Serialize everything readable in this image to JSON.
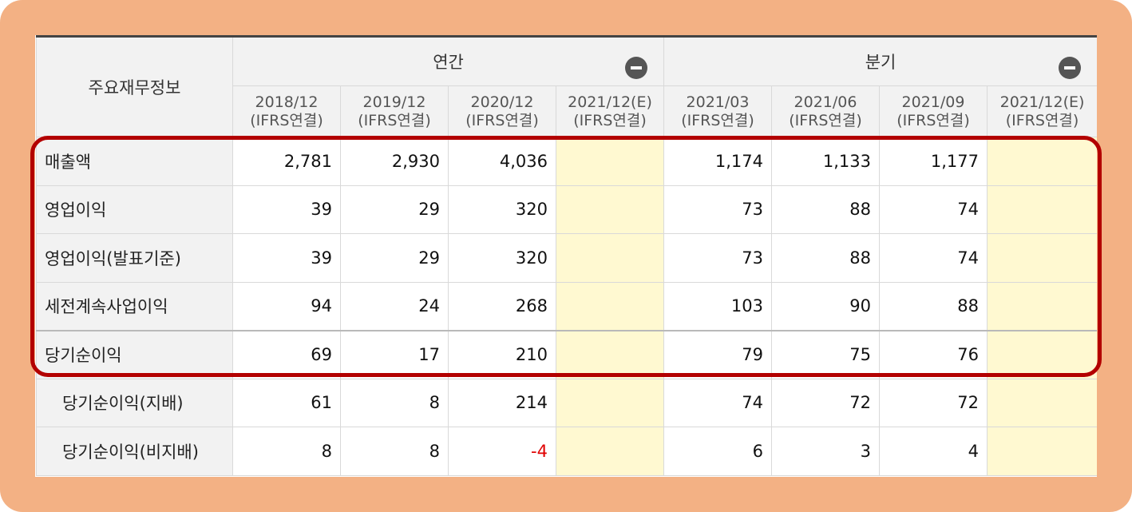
{
  "header": {
    "title": "주요재무정보",
    "annual_label": "연간",
    "quarterly_label": "분기",
    "periods": [
      {
        "date": "2018/12",
        "basis": "(IFRS연결)"
      },
      {
        "date": "2019/12",
        "basis": "(IFRS연결)"
      },
      {
        "date": "2020/12",
        "basis": "(IFRS연결)"
      },
      {
        "date": "2021/12(E)",
        "basis": "(IFRS연결)"
      },
      {
        "date": "2021/03",
        "basis": "(IFRS연결)"
      },
      {
        "date": "2021/06",
        "basis": "(IFRS연결)"
      },
      {
        "date": "2021/09",
        "basis": "(IFRS연결)"
      },
      {
        "date": "2021/12(E)",
        "basis": "(IFRS연결)"
      }
    ]
  },
  "rows": [
    {
      "label": "매출액",
      "values": [
        "2,781",
        "2,930",
        "4,036",
        "",
        "1,174",
        "1,133",
        "1,177",
        ""
      ]
    },
    {
      "label": "영업이익",
      "values": [
        "39",
        "29",
        "320",
        "",
        "73",
        "88",
        "74",
        ""
      ]
    },
    {
      "label": "영업이익(발표기준)",
      "values": [
        "39",
        "29",
        "320",
        "",
        "73",
        "88",
        "74",
        ""
      ]
    },
    {
      "label": "세전계속사업이익",
      "values": [
        "94",
        "24",
        "268",
        "",
        "103",
        "90",
        "88",
        ""
      ]
    },
    {
      "label": "당기순이익",
      "values": [
        "69",
        "17",
        "210",
        "",
        "79",
        "75",
        "76",
        ""
      ]
    },
    {
      "label": "당기순이익(지배)",
      "values": [
        "61",
        "8",
        "214",
        "",
        "74",
        "72",
        "72",
        ""
      ]
    },
    {
      "label": "당기순이익(비지배)",
      "values": [
        "8",
        "8",
        "-4",
        "",
        "6",
        "3",
        "4",
        ""
      ]
    }
  ],
  "colors": {
    "frame": "#f3b184",
    "highlight_border": "#b30000",
    "estimate_cell": "#fff9d1",
    "negative_value": "#e00000",
    "header_bg": "#f2f2f2"
  },
  "icons": {
    "annual_toggle": "minus-circle-icon",
    "quarterly_toggle": "minus-circle-icon"
  }
}
